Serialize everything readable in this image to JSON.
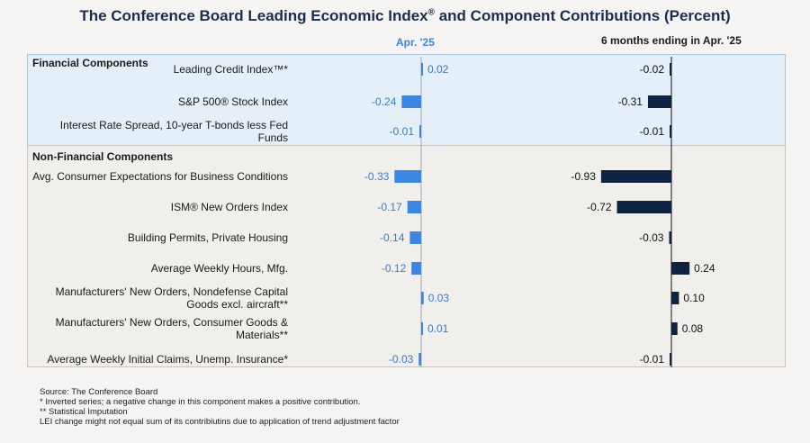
{
  "chart_data": {
    "type": "bar",
    "title_main": "The Conference Board Leading Economic Index",
    "title_reg": "®",
    "title_rest": " and Component Contributions (Percent)",
    "series": [
      {
        "name": "Apr. '25",
        "color": "#3a86e0",
        "values": [
          0.02,
          -0.24,
          -0.01,
          -0.33,
          -0.17,
          -0.14,
          -0.12,
          0.03,
          0.01,
          -0.03
        ],
        "labels": [
          "0.02",
          "-0.24",
          "-0.01",
          "-0.33",
          "-0.17",
          "-0.14",
          "-0.12",
          "0.03",
          "0.01",
          "-0.03"
        ]
      },
      {
        "name": "6 months ending in Apr. '25",
        "color": "#0f2340",
        "values": [
          -0.02,
          -0.31,
          -0.01,
          -0.93,
          -0.72,
          -0.03,
          0.24,
          0.1,
          0.08,
          -0.01
        ],
        "labels": [
          "-0.02",
          "-0.31",
          "-0.01",
          "-0.93",
          "-0.72",
          "-0.03",
          "0.24",
          "0.10",
          "0.08",
          "-0.01"
        ]
      }
    ],
    "groups": [
      {
        "name": "Financial Components",
        "start": 0,
        "count": 3
      },
      {
        "name": "Non-Financial Components",
        "start": 3,
        "count": 7
      }
    ],
    "categories": [
      [
        "Leading Credit Index™*"
      ],
      [
        "S&P 500® Stock Index"
      ],
      [
        "Interest Rate Spread, 10-year T-bonds less Fed",
        "Funds"
      ],
      [
        "Avg. Consumer Expectations for Business Conditions"
      ],
      [
        "ISM® New Orders Index"
      ],
      [
        "Building Permits, Private Housing"
      ],
      [
        "Average Weekly Hours, Mfg."
      ],
      [
        "Manufacturers' New Orders, Nondefense Capital",
        "Goods excl. aircraft**"
      ],
      [
        "Manufacturers' New Orders, Consumer Goods &",
        "Materials**"
      ],
      [
        "Average Weekly Initial Claims, Unemp. Insurance*"
      ]
    ]
  },
  "footer": {
    "source": "Source: The Conference Board",
    "note1": "*  Inverted series; a negative change in this component makes a positive contribution.",
    "note2": "**  Statistical Imputation",
    "note3": "LEI change might not equal sum of its contribiutins due to application of trend adjustment factor"
  }
}
